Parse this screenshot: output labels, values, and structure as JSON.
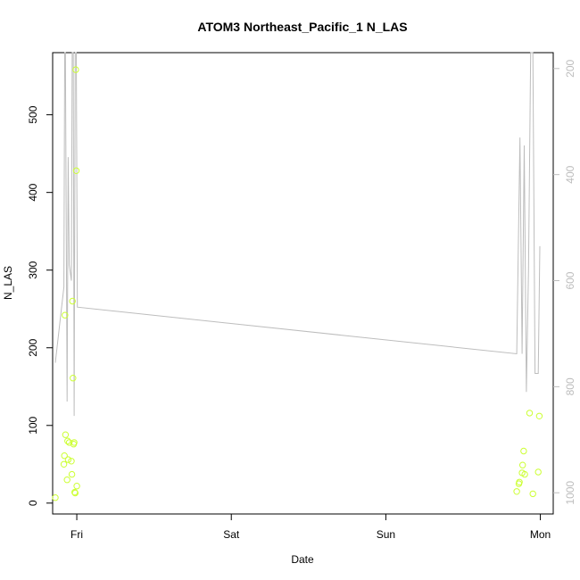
{
  "chart_data": {
    "type": "scatter",
    "title": "ATOM3 Northeast_Pacific_1 N_LAS",
    "xlabel": "Date",
    "ylabel": "N_LAS",
    "x_ticks": [
      "Fri",
      "Sat",
      "Sun",
      "Mon"
    ],
    "y_ticks": [
      0,
      100,
      200,
      300,
      400,
      500
    ],
    "y2_ticks": [
      200,
      400,
      600,
      800,
      1000
    ],
    "xlim": [
      "Thu 20:15",
      "Mon 02:00"
    ],
    "ylim": [
      -14,
      580
    ],
    "y2lim": [
      1040,
      170
    ],
    "y2_reversed": true,
    "grid": false,
    "series": [
      {
        "kind": "points",
        "color": "#ccff33",
        "points": [
          {
            "x": "Thu 20:40",
            "y": 7
          },
          {
            "x": "Thu 22:00",
            "y": 50
          },
          {
            "x": "Thu 22:05",
            "y": 61
          },
          {
            "x": "Thu 22:10",
            "y": 242
          },
          {
            "x": "Thu 22:15",
            "y": 88
          },
          {
            "x": "Thu 22:30",
            "y": 30
          },
          {
            "x": "Thu 22:35",
            "y": 80
          },
          {
            "x": "Thu 22:40",
            "y": 56
          },
          {
            "x": "Thu 22:50",
            "y": 78
          },
          {
            "x": "Thu 23:10",
            "y": 54
          },
          {
            "x": "Thu 23:15",
            "y": 37
          },
          {
            "x": "Thu 23:20",
            "y": 260
          },
          {
            "x": "Thu 23:25",
            "y": 161
          },
          {
            "x": "Thu 23:30",
            "y": 76
          },
          {
            "x": "Thu 23:35",
            "y": 78
          },
          {
            "x": "Thu 23:40",
            "y": 14
          },
          {
            "x": "Thu 23:45",
            "y": 13
          },
          {
            "x": "Thu 23:50",
            "y": 558
          },
          {
            "x": "Thu 23:55",
            "y": 428
          },
          {
            "x": "Fri 00:00",
            "y": 22
          },
          {
            "x": "Sun 20:20",
            "y": 15
          },
          {
            "x": "Sun 20:40",
            "y": 25
          },
          {
            "x": "Sun 20:45",
            "y": 27
          },
          {
            "x": "Sun 21:10",
            "y": 39
          },
          {
            "x": "Sun 21:15",
            "y": 49
          },
          {
            "x": "Sun 21:25",
            "y": 67
          },
          {
            "x": "Sun 21:35",
            "y": 37
          },
          {
            "x": "Sun 22:20",
            "y": 116
          },
          {
            "x": "Sun 22:50",
            "y": 12
          },
          {
            "x": "Sun 23:40",
            "y": 40
          },
          {
            "x": "Sun 23:50",
            "y": 112
          }
        ]
      },
      {
        "kind": "line",
        "axis": "right",
        "color": "#bdbdbd",
        "points": [
          {
            "x": "Thu 20:40",
            "y": 755
          },
          {
            "x": "Thu 22:00",
            "y": 612
          },
          {
            "x": "Thu 22:07",
            "y": 170
          },
          {
            "x": "Thu 22:14",
            "y": 170
          },
          {
            "x": "Thu 22:30",
            "y": 828
          },
          {
            "x": "Thu 22:40",
            "y": 367
          },
          {
            "x": "Thu 22:50",
            "y": 570
          },
          {
            "x": "Thu 23:10",
            "y": 600
          },
          {
            "x": "Thu 23:17",
            "y": 170
          },
          {
            "x": "Thu 23:27",
            "y": 170
          },
          {
            "x": "Thu 23:35",
            "y": 855
          },
          {
            "x": "Thu 23:45",
            "y": 170
          },
          {
            "x": "Thu 23:55",
            "y": 170
          },
          {
            "x": "Fri 00:05",
            "y": 650
          },
          {
            "x": "Sun 20:20",
            "y": 738
          },
          {
            "x": "Sun 20:50",
            "y": 330
          },
          {
            "x": "Sun 21:10",
            "y": 738
          },
          {
            "x": "Sun 21:30",
            "y": 345
          },
          {
            "x": "Sun 21:50",
            "y": 810
          },
          {
            "x": "Sun 22:10",
            "y": 580
          },
          {
            "x": "Sun 22:30",
            "y": 170
          },
          {
            "x": "Sun 22:50",
            "y": 170
          },
          {
            "x": "Sun 23:10",
            "y": 775
          },
          {
            "x": "Sun 23:40",
            "y": 775
          },
          {
            "x": "Sun 23:55",
            "y": 535
          }
        ]
      }
    ]
  }
}
